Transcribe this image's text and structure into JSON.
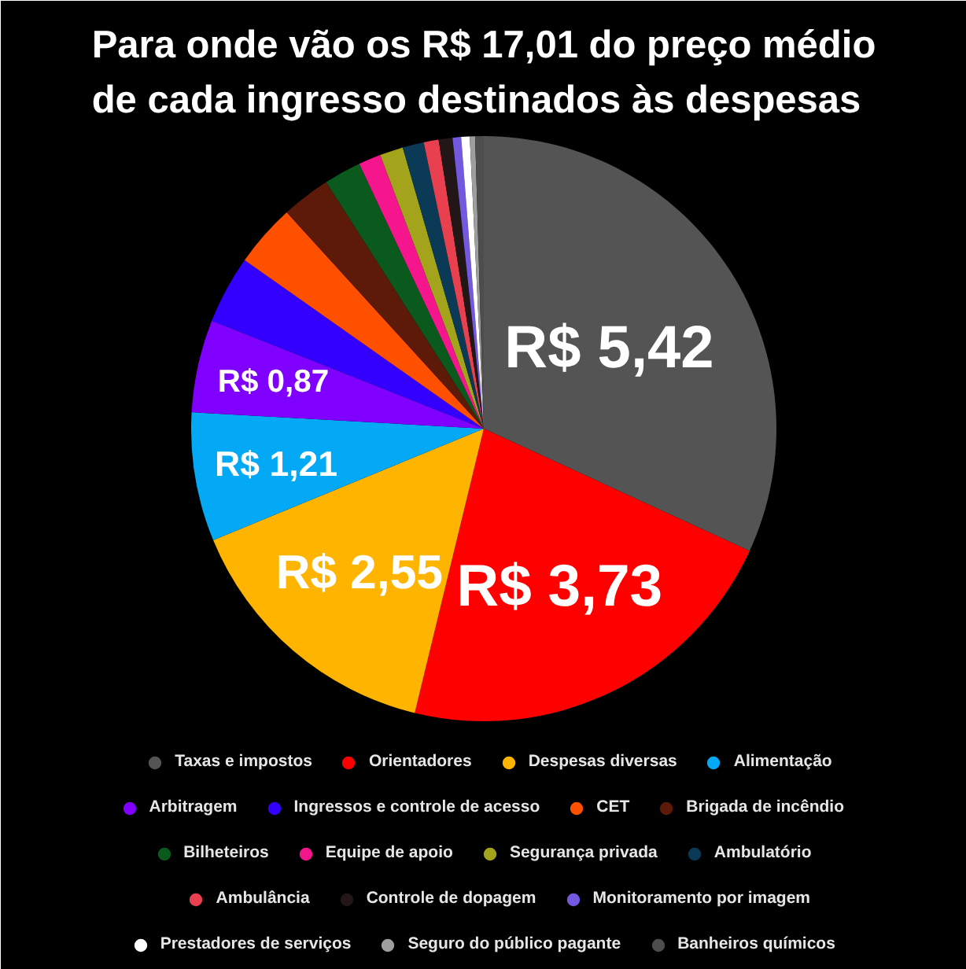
{
  "chart_data": {
    "type": "pie",
    "title": "Para onde vão os R$ 17,01 do preço médio\nde cada ingresso destinados às despesas",
    "categories": [
      "Taxas e impostos",
      "Orientadores",
      "Despesas diversas",
      "Alimentação",
      "Arbitragem",
      "Ingressos e controle de acesso",
      "CET",
      "Brigada de incêndio",
      "Bilheteiros",
      "Equipe de apoio",
      "Segurança privada",
      "Ambulatório",
      "Ambulância",
      "Controle de dopagem",
      "Monitoramento por imagem",
      "Prestadores de serviços",
      "Seguro do público pagante",
      "Banheiros químicos"
    ],
    "values": [
      5.42,
      3.73,
      2.55,
      1.21,
      0.87,
      0.64,
      0.59,
      0.46,
      0.35,
      0.21,
      0.22,
      0.2,
      0.14,
      0.13,
      0.08,
      0.08,
      0.05,
      0.08
    ],
    "colors": [
      "#545454",
      "#ff0000",
      "#ffb400",
      "#03a9f4",
      "#8000ff",
      "#3300ff",
      "#ff5000",
      "#5e1a08",
      "#0a5a1e",
      "#f5158c",
      "#a3a31c",
      "#0b3a57",
      "#e8404e",
      "#231616",
      "#7358e0",
      "#ffffff",
      "#9e9e9e",
      "#4d4d4d"
    ],
    "value_labels": [
      "R$ 5,42",
      "R$ 3,73",
      "R$ 2,55",
      "R$ 1,21",
      "R$ 0,87",
      null,
      null,
      null,
      null,
      null,
      null,
      null,
      null,
      null,
      null,
      null,
      null,
      null
    ],
    "legend": "bottom"
  }
}
